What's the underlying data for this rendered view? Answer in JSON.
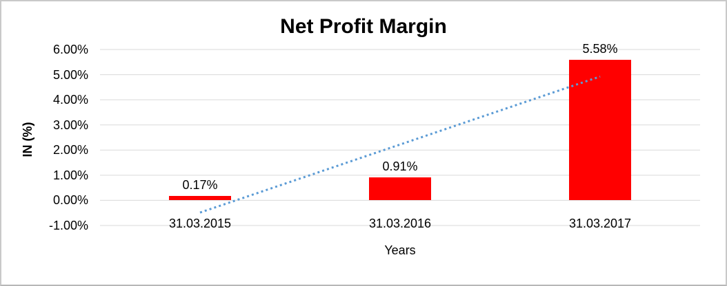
{
  "chart_data": {
    "type": "bar",
    "title": "Net Profit Margin",
    "xlabel": "Years",
    "ylabel": "IN (%)",
    "categories": [
      "31.03.2015",
      "31.03.2016",
      "31.03.2017"
    ],
    "values": [
      0.17,
      0.91,
      5.58
    ],
    "data_labels": [
      "0.17%",
      "0.91%",
      "5.58%"
    ],
    "ytick_values": [
      6,
      5,
      4,
      3,
      2,
      1,
      0,
      -1
    ],
    "ytick_labels": [
      "6.00%",
      "5.00%",
      "4.00%",
      "3.00%",
      "2.00%",
      "1.00%",
      "0.00%",
      "-1.00%"
    ],
    "ylim": [
      -1,
      6
    ],
    "grid": true,
    "legend": false,
    "trendline": {
      "type": "linear",
      "style": "dotted"
    },
    "colors": {
      "bar": "#FF0000",
      "trendline": "#5B9BD5",
      "gridline": "#D9D9D9",
      "text": "#000000",
      "frame_border": "#C9C9C9"
    }
  }
}
